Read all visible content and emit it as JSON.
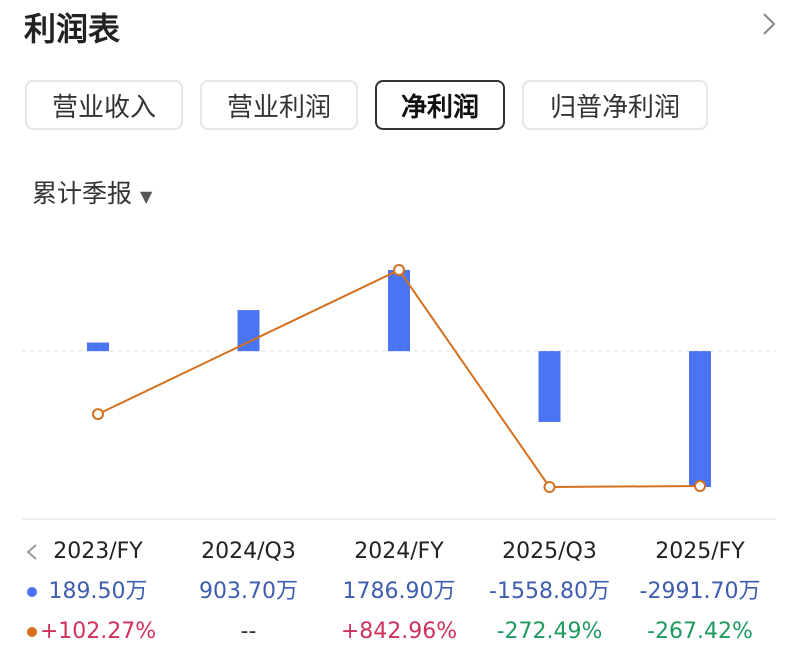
{
  "header": {
    "title": "利润表"
  },
  "tabs": {
    "items": [
      "营业收入",
      "营业利润",
      "净利润",
      "归普净利润"
    ],
    "active": 2
  },
  "filter": "累计季报",
  "chart_data": {
    "type": "bar",
    "categories": [
      "2023/FY",
      "2024/Q3",
      "2024/FY",
      "2025/Q3",
      "2025/FY"
    ],
    "series": [
      {
        "type": "bar",
        "color": "#4b74f3",
        "label_color": "#3e5db0",
        "values": [
          189.5,
          903.7,
          1786.9,
          -1558.8,
          -2991.7
        ],
        "value_labels": [
          "189.50万",
          "903.70万",
          "1786.90万",
          "-1558.80万",
          "-2991.70万"
        ]
      },
      {
        "type": "line",
        "color": "#d4711f",
        "up_color": "#d0325c",
        "down_color": "#1f9a5e",
        "values": [
          102.27,
          null,
          842.96,
          -272.49,
          -267.42
        ],
        "value_labels": [
          "+102.27%",
          "--",
          "+842.96%",
          "-272.49%",
          "-267.42%"
        ]
      }
    ]
  }
}
